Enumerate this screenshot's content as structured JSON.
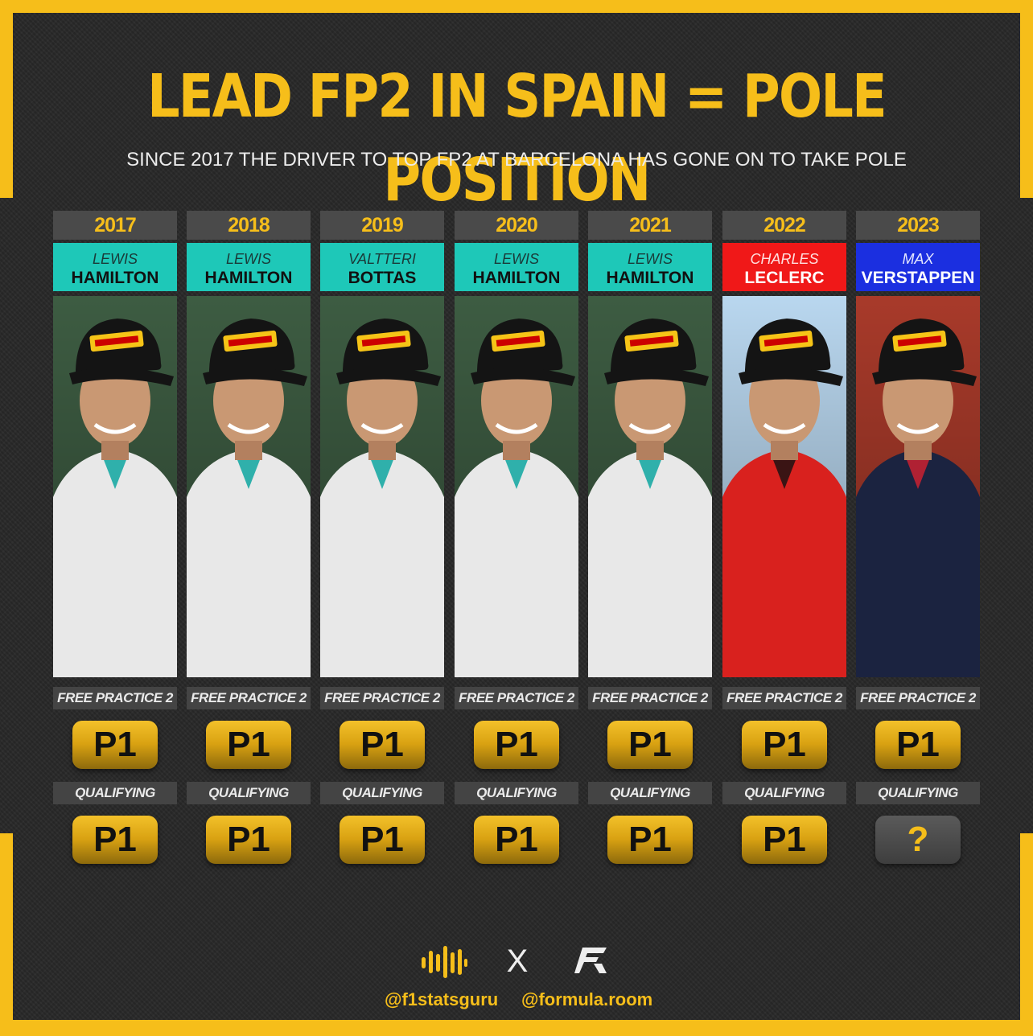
{
  "header": {
    "title": "LEAD FP2 IN SPAIN = POLE POSITION",
    "subtitle": "SINCE 2017 THE DRIVER TO TOP FP2 AT BARCELONA HAS GONE ON TO TAKE POLE"
  },
  "labels": {
    "fp2": "FREE PRACTICE 2",
    "qualifying": "QUALIFYING"
  },
  "columns": [
    {
      "year": "2017",
      "first": "LEWIS",
      "last": "HAMILTON",
      "fp2": "P1",
      "quali": "P1",
      "team": "mercedes",
      "name_bg": "#1ec8b8",
      "first_color": "#1a3a38",
      "last_color": "#111111"
    },
    {
      "year": "2018",
      "first": "LEWIS",
      "last": "HAMILTON",
      "fp2": "P1",
      "quali": "P1",
      "team": "mercedes",
      "name_bg": "#1ec8b8",
      "first_color": "#1a3a38",
      "last_color": "#111111"
    },
    {
      "year": "2019",
      "first": "VALTTERI",
      "last": "BOTTAS",
      "fp2": "P1",
      "quali": "P1",
      "team": "mercedes",
      "name_bg": "#1ec8b8",
      "first_color": "#1a3a38",
      "last_color": "#111111"
    },
    {
      "year": "2020",
      "first": "LEWIS",
      "last": "HAMILTON",
      "fp2": "P1",
      "quali": "P1",
      "team": "mercedes",
      "name_bg": "#1ec8b8",
      "first_color": "#1a3a38",
      "last_color": "#111111"
    },
    {
      "year": "2021",
      "first": "LEWIS",
      "last": "HAMILTON",
      "fp2": "P1",
      "quali": "P1",
      "team": "mercedes",
      "name_bg": "#1ec8b8",
      "first_color": "#1a3a38",
      "last_color": "#111111"
    },
    {
      "year": "2022",
      "first": "CHARLES",
      "last": "LECLERC",
      "fp2": "P1",
      "quali": "P1",
      "team": "ferrari",
      "name_bg": "#f01818",
      "first_color": "#ffe0e0",
      "last_color": "#ffffff"
    },
    {
      "year": "2023",
      "first": "MAX",
      "last": "VERSTAPPEN",
      "fp2": "P1",
      "quali": "?",
      "team": "redbull",
      "name_bg": "#1b2fe0",
      "first_color": "#e6e9ff",
      "last_color": "#ffffff"
    }
  ],
  "footer": {
    "separator": "X",
    "handle_left": "@f1statsguru",
    "handle_right": "@formula.room"
  },
  "colors": {
    "accent": "#f6be1a",
    "mercedes": "#1ec8b8",
    "ferrari": "#f01818",
    "redbull": "#1b2fe0"
  }
}
